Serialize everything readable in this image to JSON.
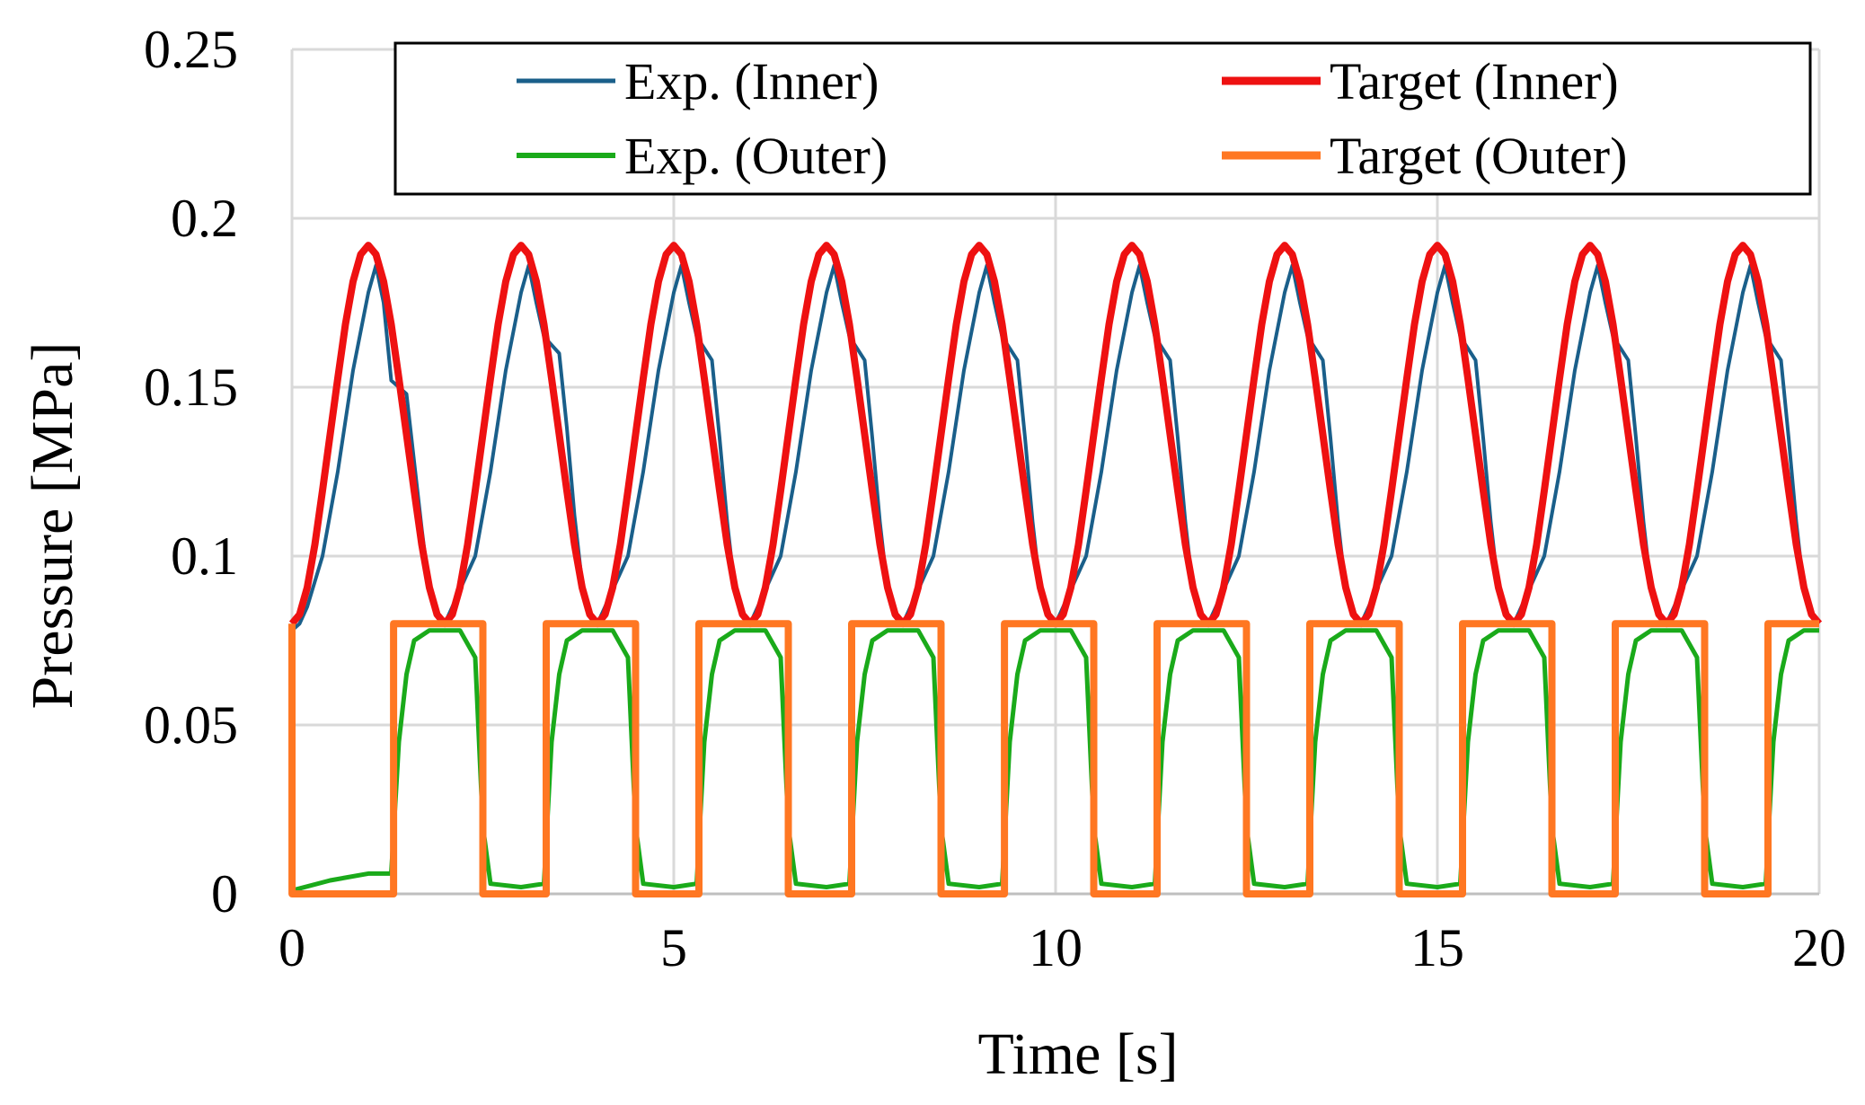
{
  "chart_data": {
    "type": "line",
    "title": "",
    "xlabel": "Time [s]",
    "ylabel": "Pressure [MPa]",
    "xlim": [
      0,
      20
    ],
    "ylim": [
      0,
      0.25
    ],
    "xticks": [
      0,
      5,
      10,
      15,
      20
    ],
    "xtick_labels": [
      "0",
      "5",
      "10",
      "15",
      "20"
    ],
    "yticks": [
      0,
      0.05,
      0.1,
      0.15,
      0.2,
      0.25
    ],
    "ytick_labels": [
      "0",
      "0.05",
      "0.1",
      "0.15",
      "0.2",
      "0.25"
    ],
    "grid": true,
    "legend_position": "top",
    "series": [
      {
        "name": "Exp. (Inner)",
        "color": "#1a5f8a",
        "x": [
          0,
          0.1,
          0.2,
          0.4,
          0.6,
          0.8,
          1.0,
          1.1,
          1.2,
          1.3,
          1.5,
          1.6,
          1.7,
          1.8,
          1.9,
          2.0,
          2.1,
          2.2,
          2.4,
          2.6,
          2.8,
          3.0,
          3.1,
          3.2,
          3.3,
          3.5,
          3.6,
          3.7,
          3.8,
          3.9,
          4.0,
          4.1,
          4.2,
          4.4,
          4.6,
          4.8,
          5.0,
          5.1,
          5.2,
          5.3,
          5.5,
          5.6,
          5.7,
          5.8,
          5.9,
          6.0,
          6.1,
          6.2,
          6.4,
          6.6,
          6.8,
          7.0,
          7.1,
          7.2,
          7.3,
          7.5,
          7.6,
          7.7,
          7.8,
          7.9,
          8.0,
          8.1,
          8.2,
          8.4,
          8.6,
          8.8,
          9.0,
          9.1,
          9.2,
          9.3,
          9.5,
          9.6,
          9.7,
          9.8,
          9.9,
          10.0,
          10.1,
          10.2,
          10.4,
          10.6,
          10.8,
          11.0,
          11.1,
          11.2,
          11.3,
          11.5,
          11.6,
          11.7,
          11.8,
          11.9,
          12.0,
          12.1,
          12.2,
          12.4,
          12.6,
          12.8,
          13.0,
          13.1,
          13.2,
          13.3,
          13.5,
          13.6,
          13.7,
          13.8,
          13.9,
          14.0,
          14.1,
          14.2,
          14.4,
          14.6,
          14.8,
          15.0,
          15.1,
          15.2,
          15.3,
          15.5,
          15.6,
          15.7,
          15.8,
          15.9,
          16.0,
          16.1,
          16.2,
          16.4,
          16.6,
          16.8,
          17.0,
          17.1,
          17.2,
          17.3,
          17.5,
          17.6,
          17.7,
          17.8,
          17.9,
          18.0,
          18.1,
          18.2,
          18.4,
          18.6,
          18.8,
          19.0,
          19.1,
          19.2,
          19.3,
          19.5,
          19.6,
          19.7,
          19.8,
          19.9,
          20.0
        ],
        "y": [
          0.078,
          0.08,
          0.085,
          0.1,
          0.125,
          0.155,
          0.178,
          0.186,
          0.175,
          0.152,
          0.148,
          0.128,
          0.108,
          0.09,
          0.082,
          0.08,
          0.085,
          0.09,
          0.1,
          0.125,
          0.155,
          0.178,
          0.186,
          0.175,
          0.165,
          0.16,
          0.138,
          0.112,
          0.092,
          0.082,
          0.08,
          0.085,
          0.09,
          0.1,
          0.125,
          0.155,
          0.178,
          0.186,
          0.175,
          0.165,
          0.158,
          0.135,
          0.11,
          0.09,
          0.082,
          0.08,
          0.085,
          0.09,
          0.1,
          0.125,
          0.155,
          0.178,
          0.186,
          0.175,
          0.165,
          0.158,
          0.135,
          0.11,
          0.09,
          0.082,
          0.08,
          0.085,
          0.09,
          0.1,
          0.125,
          0.155,
          0.178,
          0.186,
          0.175,
          0.165,
          0.158,
          0.135,
          0.11,
          0.09,
          0.082,
          0.08,
          0.085,
          0.09,
          0.1,
          0.125,
          0.155,
          0.178,
          0.186,
          0.175,
          0.165,
          0.158,
          0.135,
          0.11,
          0.09,
          0.082,
          0.08,
          0.085,
          0.09,
          0.1,
          0.125,
          0.155,
          0.178,
          0.186,
          0.175,
          0.165,
          0.158,
          0.135,
          0.11,
          0.09,
          0.082,
          0.08,
          0.085,
          0.09,
          0.1,
          0.125,
          0.155,
          0.178,
          0.186,
          0.175,
          0.165,
          0.158,
          0.135,
          0.11,
          0.09,
          0.082,
          0.08,
          0.085,
          0.09,
          0.1,
          0.125,
          0.155,
          0.178,
          0.186,
          0.175,
          0.165,
          0.158,
          0.135,
          0.11,
          0.09,
          0.082,
          0.08,
          0.085,
          0.09,
          0.1,
          0.125,
          0.155,
          0.178,
          0.186,
          0.175,
          0.165,
          0.158,
          0.135,
          0.11,
          0.09,
          0.082,
          0.08
        ]
      },
      {
        "name": "Target (Inner)",
        "color": "#ee1111",
        "x": [
          0,
          0.1,
          0.2,
          0.3,
          0.4,
          0.5,
          0.6,
          0.7,
          0.8,
          0.9,
          1.0,
          1.1,
          1.2,
          1.3,
          1.4,
          1.5,
          1.6,
          1.7,
          1.8,
          1.9,
          2.0,
          2.1,
          2.2,
          2.3,
          2.4,
          2.5,
          2.6,
          2.7,
          2.8,
          2.9,
          3.0,
          3.1,
          3.2,
          3.3,
          3.4,
          3.5,
          3.6,
          3.7,
          3.8,
          3.9,
          4.0,
          4.1,
          4.2,
          4.3,
          4.4,
          4.5,
          4.6,
          4.7,
          4.8,
          4.9,
          5.0,
          5.1,
          5.2,
          5.3,
          5.4,
          5.5,
          5.6,
          5.7,
          5.8,
          5.9,
          6.0,
          6.1,
          6.2,
          6.3,
          6.4,
          6.5,
          6.6,
          6.7,
          6.8,
          6.9,
          7.0,
          7.1,
          7.2,
          7.3,
          7.4,
          7.5,
          7.6,
          7.7,
          7.8,
          7.9,
          8.0,
          8.1,
          8.2,
          8.3,
          8.4,
          8.5,
          8.6,
          8.7,
          8.8,
          8.9,
          9.0,
          9.1,
          9.2,
          9.3,
          9.4,
          9.5,
          9.6,
          9.7,
          9.8,
          9.9,
          10.0,
          10.1,
          10.2,
          10.3,
          10.4,
          10.5,
          10.6,
          10.7,
          10.8,
          10.9,
          11.0,
          11.1,
          11.2,
          11.3,
          11.4,
          11.5,
          11.6,
          11.7,
          11.8,
          11.9,
          12.0,
          12.1,
          12.2,
          12.3,
          12.4,
          12.5,
          12.6,
          12.7,
          12.8,
          12.9,
          13.0,
          13.1,
          13.2,
          13.3,
          13.4,
          13.5,
          13.6,
          13.7,
          13.8,
          13.9,
          14.0,
          14.1,
          14.2,
          14.3,
          14.4,
          14.5,
          14.6,
          14.7,
          14.8,
          14.9,
          15.0,
          15.1,
          15.2,
          15.3,
          15.4,
          15.5,
          15.6,
          15.7,
          15.8,
          15.9,
          16.0,
          16.1,
          16.2,
          16.3,
          16.4,
          16.5,
          16.6,
          16.7,
          16.8,
          16.9,
          17.0,
          17.1,
          17.2,
          17.3,
          17.4,
          17.5,
          17.6,
          17.7,
          17.8,
          17.9,
          18.0,
          18.1,
          18.2,
          18.3,
          18.4,
          18.5,
          18.6,
          18.7,
          18.8,
          18.9,
          19.0,
          19.1,
          19.2,
          19.3,
          19.4,
          19.5,
          19.6,
          19.7,
          19.8,
          19.9,
          20.0
        ],
        "y": [
          0.08,
          0.0827,
          0.0907,
          0.1034,
          0.1194,
          0.136,
          0.1526,
          0.1686,
          0.1813,
          0.1893,
          0.192,
          0.1893,
          0.1813,
          0.1686,
          0.1526,
          0.136,
          0.1194,
          0.1034,
          0.0907,
          0.0827,
          0.08,
          0.0827,
          0.0907,
          0.1034,
          0.1194,
          0.136,
          0.1526,
          0.1686,
          0.1813,
          0.1893,
          0.192,
          0.1893,
          0.1813,
          0.1686,
          0.1526,
          0.136,
          0.1194,
          0.1034,
          0.0907,
          0.0827,
          0.08,
          0.0827,
          0.0907,
          0.1034,
          0.1194,
          0.136,
          0.1526,
          0.1686,
          0.1813,
          0.1893,
          0.192,
          0.1893,
          0.1813,
          0.1686,
          0.1526,
          0.136,
          0.1194,
          0.1034,
          0.0907,
          0.0827,
          0.08,
          0.0827,
          0.0907,
          0.1034,
          0.1194,
          0.136,
          0.1526,
          0.1686,
          0.1813,
          0.1893,
          0.192,
          0.1893,
          0.1813,
          0.1686,
          0.1526,
          0.136,
          0.1194,
          0.1034,
          0.0907,
          0.0827,
          0.08,
          0.0827,
          0.0907,
          0.1034,
          0.1194,
          0.136,
          0.1526,
          0.1686,
          0.1813,
          0.1893,
          0.192,
          0.1893,
          0.1813,
          0.1686,
          0.1526,
          0.136,
          0.1194,
          0.1034,
          0.0907,
          0.0827,
          0.08,
          0.0827,
          0.0907,
          0.1034,
          0.1194,
          0.136,
          0.1526,
          0.1686,
          0.1813,
          0.1893,
          0.192,
          0.1893,
          0.1813,
          0.1686,
          0.1526,
          0.136,
          0.1194,
          0.1034,
          0.0907,
          0.0827,
          0.08,
          0.0827,
          0.0907,
          0.1034,
          0.1194,
          0.136,
          0.1526,
          0.1686,
          0.1813,
          0.1893,
          0.192,
          0.1893,
          0.1813,
          0.1686,
          0.1526,
          0.136,
          0.1194,
          0.1034,
          0.0907,
          0.0827,
          0.08,
          0.0827,
          0.0907,
          0.1034,
          0.1194,
          0.136,
          0.1526,
          0.1686,
          0.1813,
          0.1893,
          0.192,
          0.1893,
          0.1813,
          0.1686,
          0.1526,
          0.136,
          0.1194,
          0.1034,
          0.0907,
          0.0827,
          0.08,
          0.0827,
          0.0907,
          0.1034,
          0.1194,
          0.136,
          0.1526,
          0.1686,
          0.1813,
          0.1893,
          0.192,
          0.1893,
          0.1813,
          0.1686,
          0.1526,
          0.136,
          0.1194,
          0.1034,
          0.0907,
          0.0827,
          0.08,
          0.0827,
          0.0907,
          0.1034,
          0.1194,
          0.136,
          0.1526,
          0.1686,
          0.1813,
          0.1893,
          0.192,
          0.1893,
          0.1813,
          0.1686,
          0.1526,
          0.136,
          0.1194,
          0.1034,
          0.0907,
          0.0827,
          0.08
        ]
      },
      {
        "name": "Exp. (Outer)",
        "color": "#1aaa1a",
        "x": [
          0,
          0.5,
          1.0,
          1.3,
          1.4,
          1.5,
          1.6,
          1.8,
          2.0,
          2.2,
          2.4,
          2.5,
          2.6,
          3.0,
          3.3,
          3.4,
          3.5,
          3.6,
          3.8,
          4.0,
          4.2,
          4.4,
          4.5,
          4.6,
          5.0,
          5.3,
          5.4,
          5.5,
          5.6,
          5.8,
          6.0,
          6.2,
          6.4,
          6.5,
          6.6,
          7.0,
          7.3,
          7.4,
          7.5,
          7.6,
          7.8,
          8.0,
          8.2,
          8.4,
          8.5,
          8.6,
          9.0,
          9.3,
          9.4,
          9.5,
          9.6,
          9.8,
          10.0,
          10.2,
          10.4,
          10.5,
          10.6,
          11.0,
          11.3,
          11.4,
          11.5,
          11.6,
          11.8,
          12.0,
          12.2,
          12.4,
          12.5,
          12.6,
          13.0,
          13.3,
          13.4,
          13.5,
          13.6,
          13.8,
          14.0,
          14.2,
          14.4,
          14.5,
          14.6,
          15.0,
          15.3,
          15.4,
          15.5,
          15.6,
          15.8,
          16.0,
          16.2,
          16.4,
          16.5,
          16.6,
          17.0,
          17.3,
          17.4,
          17.5,
          17.6,
          17.8,
          18.0,
          18.2,
          18.4,
          18.5,
          18.6,
          19.0,
          19.3,
          19.4,
          19.5,
          19.6,
          19.8,
          20.0
        ],
        "y": [
          0.001,
          0.004,
          0.006,
          0.006,
          0.045,
          0.065,
          0.075,
          0.078,
          0.078,
          0.078,
          0.07,
          0.02,
          0.003,
          0.002,
          0.003,
          0.045,
          0.065,
          0.075,
          0.078,
          0.078,
          0.078,
          0.07,
          0.02,
          0.003,
          0.002,
          0.003,
          0.045,
          0.065,
          0.075,
          0.078,
          0.078,
          0.078,
          0.07,
          0.02,
          0.003,
          0.002,
          0.003,
          0.045,
          0.065,
          0.075,
          0.078,
          0.078,
          0.078,
          0.07,
          0.02,
          0.003,
          0.002,
          0.003,
          0.045,
          0.065,
          0.075,
          0.078,
          0.078,
          0.078,
          0.07,
          0.02,
          0.003,
          0.002,
          0.003,
          0.045,
          0.065,
          0.075,
          0.078,
          0.078,
          0.078,
          0.07,
          0.02,
          0.003,
          0.002,
          0.003,
          0.045,
          0.065,
          0.075,
          0.078,
          0.078,
          0.078,
          0.07,
          0.02,
          0.003,
          0.002,
          0.003,
          0.045,
          0.065,
          0.075,
          0.078,
          0.078,
          0.078,
          0.07,
          0.02,
          0.003,
          0.002,
          0.003,
          0.045,
          0.065,
          0.075,
          0.078,
          0.078,
          0.078,
          0.07,
          0.02,
          0.003,
          0.002,
          0.003,
          0.045,
          0.065,
          0.075,
          0.078,
          0.078
        ]
      },
      {
        "name": "Target (Outer)",
        "color": "#ff7722",
        "x": [
          0,
          0.001,
          1.33,
          1.33,
          2.5,
          2.5,
          3.33,
          3.33,
          4.5,
          4.5,
          5.33,
          5.33,
          6.5,
          6.5,
          7.33,
          7.33,
          8.5,
          8.5,
          9.33,
          9.33,
          10.5,
          10.5,
          11.33,
          11.33,
          12.5,
          12.5,
          13.33,
          13.33,
          14.5,
          14.5,
          15.33,
          15.33,
          16.5,
          16.5,
          17.33,
          17.33,
          18.5,
          18.5,
          19.33,
          19.33,
          20.0
        ],
        "y": [
          0.08,
          0,
          0,
          0.08,
          0.08,
          0,
          0,
          0.08,
          0.08,
          0,
          0,
          0.08,
          0.08,
          0,
          0,
          0.08,
          0.08,
          0,
          0,
          0.08,
          0.08,
          0,
          0,
          0.08,
          0.08,
          0,
          0,
          0.08,
          0.08,
          0,
          0,
          0.08,
          0.08,
          0,
          0,
          0.08,
          0.08,
          0,
          0,
          0.08,
          0.08
        ]
      }
    ]
  }
}
